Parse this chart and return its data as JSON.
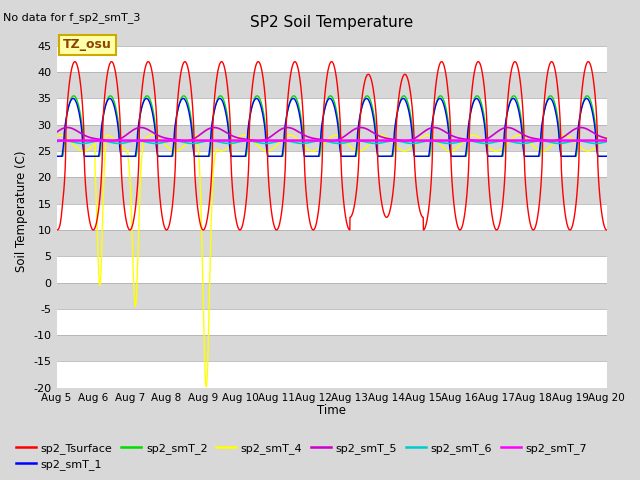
{
  "title": "SP2 Soil Temperature",
  "annotation": "No data for f_sp2_smT_3",
  "tz_label": "TZ_osu",
  "ylabel": "Soil Temperature (C)",
  "xlabel": "Time",
  "ylim": [
    -20,
    47
  ],
  "yticks": [
    -20,
    -15,
    -10,
    -5,
    0,
    5,
    10,
    15,
    20,
    25,
    30,
    35,
    40,
    45
  ],
  "xticklabels": [
    "Aug 5",
    "Aug 6",
    "Aug 7",
    "Aug 8",
    "Aug 9",
    "Aug 10",
    "Aug 11",
    "Aug 12",
    "Aug 13",
    "Aug 14",
    "Aug 15",
    "Aug 16",
    "Aug 17",
    "Aug 18",
    "Aug 19",
    "Aug 20"
  ],
  "bg_color": "#d8d8d8",
  "series_colors": {
    "sp2_Tsurface": "#ff0000",
    "sp2_smT_1": "#0000ff",
    "sp2_smT_2": "#00dd00",
    "sp2_smT_4": "#ffff00",
    "sp2_smT_5": "#cc00cc",
    "sp2_smT_6": "#00cccc",
    "sp2_smT_7": "#ff00ff"
  },
  "legend_items": [
    {
      "label": "sp2_Tsurface",
      "color": "#ff0000"
    },
    {
      "label": "sp2_smT_1",
      "color": "#0000ff"
    },
    {
      "label": "sp2_smT_2",
      "color": "#00dd00"
    },
    {
      "label": "sp2_smT_4",
      "color": "#ffff00"
    },
    {
      "label": "sp2_smT_5",
      "color": "#cc00cc"
    },
    {
      "label": "sp2_smT_6",
      "color": "#00cccc"
    },
    {
      "label": "sp2_smT_7",
      "color": "#ff00ff"
    }
  ]
}
